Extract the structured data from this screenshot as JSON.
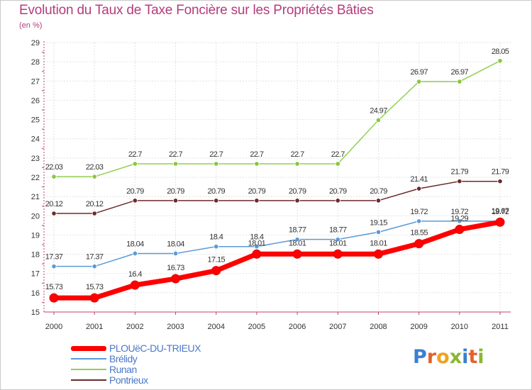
{
  "title": "Evolution du Taux de Taxe Foncière sur les Propriétés Bâties",
  "subtitle": "(en %)",
  "logo": {
    "text": "Proxiti",
    "letters": [
      "P",
      "r",
      "o",
      "x",
      "i",
      "t",
      "i"
    ],
    "colors": [
      "#3a7fd1",
      "#e3632c",
      "#f0a21e",
      "#8ab732",
      "#3a7fd1",
      "#e3632c",
      "#8ab732"
    ]
  },
  "chart_data": {
    "type": "line",
    "x": [
      "2000",
      "2001",
      "2002",
      "2003",
      "2004",
      "2005",
      "2006",
      "2007",
      "2008",
      "2009",
      "2010",
      "2011"
    ],
    "ylim": [
      15,
      29
    ],
    "yticks": [
      "15",
      "16",
      "17",
      "18",
      "19",
      "20",
      "21",
      "22",
      "23",
      "24",
      "25",
      "26",
      "27",
      "28",
      "29"
    ],
    "grid": true,
    "series": [
      {
        "name": "Runan",
        "color": "#92d050",
        "marker": "#8ac53b",
        "width": 1.5,
        "values": [
          22.03,
          22.03,
          22.7,
          22.7,
          22.7,
          22.7,
          22.7,
          22.7,
          24.97,
          26.97,
          26.97,
          28.05
        ],
        "labels": [
          "22.03",
          "22.03",
          "22.7",
          "22.7",
          "22.7",
          "22.7",
          "22.7",
          "22.7",
          "24.97",
          "26.97",
          "26.97",
          "28.05"
        ]
      },
      {
        "name": "Pontrieux",
        "color": "#6e2a2a",
        "marker": "#6e2a2a",
        "width": 1.5,
        "values": [
          20.12,
          20.12,
          20.79,
          20.79,
          20.79,
          20.79,
          20.79,
          20.79,
          20.79,
          21.41,
          21.79,
          21.79
        ],
        "labels": [
          "20.12",
          "20.12",
          "20.79",
          "20.79",
          "20.79",
          "20.79",
          "20.79",
          "20.79",
          "20.79",
          "21.41",
          "21.79",
          "21.79"
        ]
      },
      {
        "name": "Brélidy",
        "color": "#5b9bd5",
        "marker": "#5b9bd5",
        "width": 1.5,
        "values": [
          17.37,
          17.37,
          18.04,
          18.04,
          18.4,
          18.4,
          18.77,
          18.77,
          19.15,
          19.72,
          19.72,
          19.72
        ],
        "labels": [
          "17.37",
          "17.37",
          "18.04",
          "18.04",
          "18.4",
          "18.4",
          "18.77",
          "18.77",
          "19.15",
          "19.72",
          "19.72",
          "19.72"
        ]
      },
      {
        "name": "PLOUëC-DU-TRIEUX",
        "color": "#ff0000",
        "marker": "#ff0000",
        "width": 7,
        "values": [
          15.73,
          15.73,
          16.4,
          16.73,
          17.15,
          18.01,
          18.01,
          18.01,
          18.01,
          18.55,
          19.29,
          19.67
        ],
        "labels": [
          "15.73",
          "15.73",
          "16.4",
          "16.73",
          "17.15",
          "18.01",
          "18.01",
          "18.01",
          "18.01",
          "18.55",
          "19.29",
          "19.67"
        ]
      }
    ],
    "legend": [
      {
        "name": "PLOUëC-DU-TRIEUX",
        "color": "#ff0000",
        "width": 7
      },
      {
        "name": "Brélidy",
        "color": "#5b9bd5",
        "width": 2
      },
      {
        "name": "Runan",
        "color": "#92d050",
        "width": 2
      },
      {
        "name": "Pontrieux",
        "color": "#6e2a2a",
        "width": 2
      }
    ],
    "legend_position": "bottom-left"
  }
}
